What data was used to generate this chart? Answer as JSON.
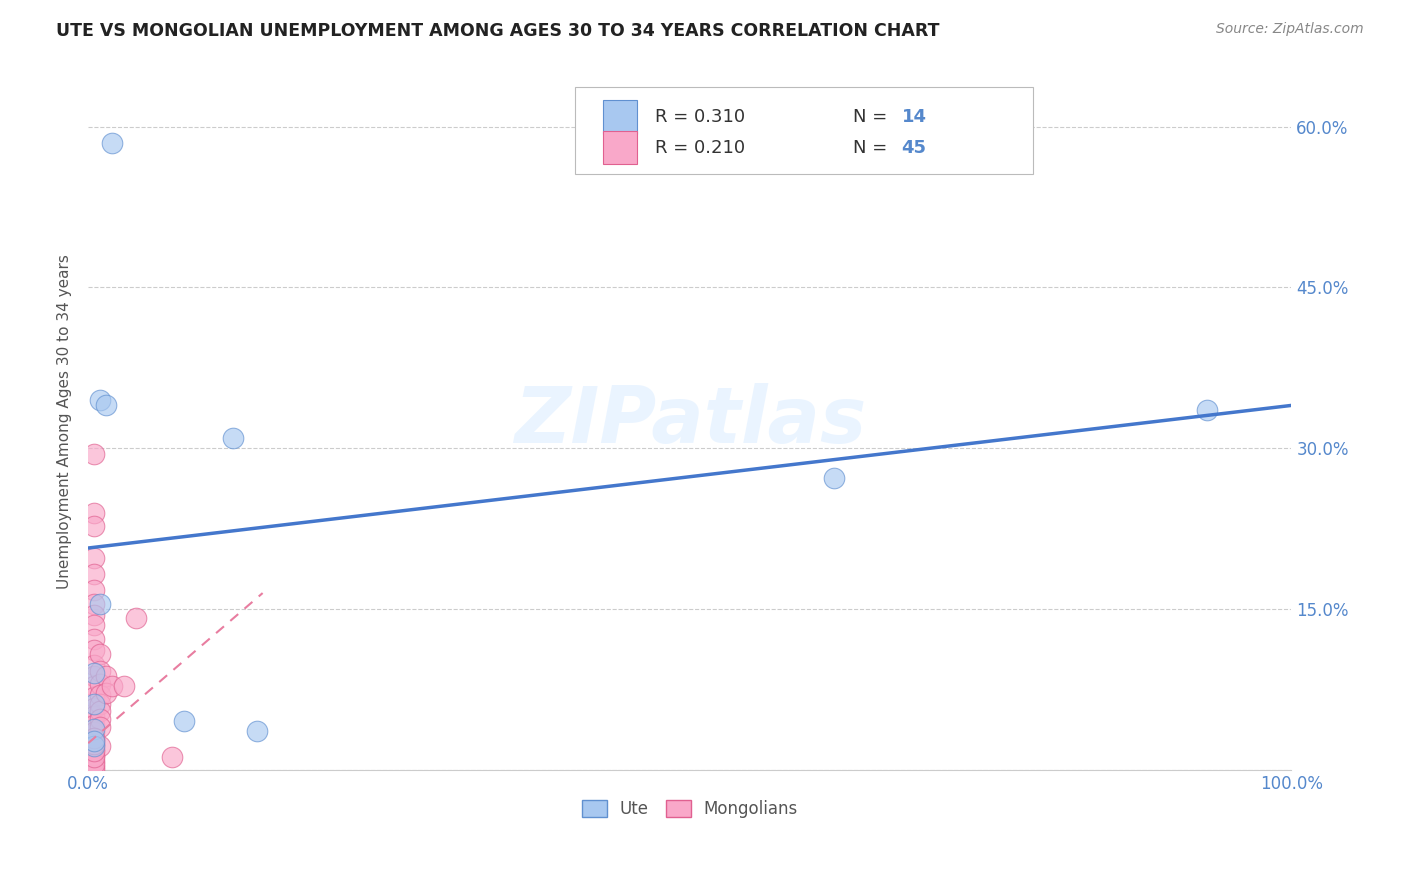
{
  "title": "UTE VS MONGOLIAN UNEMPLOYMENT AMONG AGES 30 TO 34 YEARS CORRELATION CHART",
  "source": "Source: ZipAtlas.com",
  "ylabel": "Unemployment Among Ages 30 to 34 years",
  "xlim": [
    0,
    1.0
  ],
  "ylim": [
    0,
    0.65
  ],
  "x_ticks": [
    0.0,
    0.1,
    0.2,
    0.3,
    0.4,
    0.5,
    0.6,
    0.7,
    0.8,
    0.9,
    1.0
  ],
  "x_tick_labels": [
    "0.0%",
    "",
    "",
    "",
    "",
    "",
    "",
    "",
    "",
    "",
    "100.0%"
  ],
  "y_ticks": [
    0.0,
    0.15,
    0.3,
    0.45,
    0.6
  ],
  "y_tick_labels_right": [
    "",
    "15.0%",
    "30.0%",
    "45.0%",
    "60.0%"
  ],
  "legend_ute_R": "0.310",
  "legend_ute_N": "14",
  "legend_mong_R": "0.210",
  "legend_mong_N": "45",
  "watermark": "ZIPatlas",
  "ute_color": "#A8C8F0",
  "mong_color": "#F9A8C9",
  "ute_edge_color": "#6090D0",
  "mong_edge_color": "#E06090",
  "ute_line_color": "#4477CC",
  "mong_line_color": "#E87DA0",
  "tick_color": "#5588CC",
  "grid_color": "#CCCCCC",
  "ute_scatter": [
    [
      0.02,
      0.585
    ],
    [
      0.01,
      0.345
    ],
    [
      0.015,
      0.34
    ],
    [
      0.12,
      0.31
    ],
    [
      0.01,
      0.155
    ],
    [
      0.005,
      0.09
    ],
    [
      0.005,
      0.062
    ],
    [
      0.08,
      0.046
    ],
    [
      0.005,
      0.038
    ],
    [
      0.14,
      0.036
    ],
    [
      0.62,
      0.272
    ],
    [
      0.93,
      0.336
    ],
    [
      0.005,
      0.022
    ],
    [
      0.005,
      0.027
    ]
  ],
  "mong_scatter": [
    [
      0.005,
      0.295
    ],
    [
      0.005,
      0.24
    ],
    [
      0.005,
      0.228
    ],
    [
      0.005,
      0.198
    ],
    [
      0.005,
      0.183
    ],
    [
      0.005,
      0.168
    ],
    [
      0.005,
      0.155
    ],
    [
      0.005,
      0.145
    ],
    [
      0.005,
      0.135
    ],
    [
      0.005,
      0.122
    ],
    [
      0.005,
      0.112
    ],
    [
      0.005,
      0.098
    ],
    [
      0.005,
      0.088
    ],
    [
      0.005,
      0.078
    ],
    [
      0.005,
      0.068
    ],
    [
      0.005,
      0.058
    ],
    [
      0.005,
      0.05
    ],
    [
      0.005,
      0.042
    ],
    [
      0.005,
      0.035
    ],
    [
      0.005,
      0.028
    ],
    [
      0.005,
      0.02
    ],
    [
      0.005,
      0.014
    ],
    [
      0.005,
      0.008
    ],
    [
      0.005,
      0.003
    ],
    [
      0.005,
      0.0
    ],
    [
      0.01,
      0.108
    ],
    [
      0.01,
      0.092
    ],
    [
      0.01,
      0.08
    ],
    [
      0.01,
      0.07
    ],
    [
      0.01,
      0.062
    ],
    [
      0.01,
      0.055
    ],
    [
      0.01,
      0.048
    ],
    [
      0.01,
      0.04
    ],
    [
      0.01,
      0.022
    ],
    [
      0.015,
      0.088
    ],
    [
      0.015,
      0.072
    ],
    [
      0.02,
      0.078
    ],
    [
      0.03,
      0.078
    ],
    [
      0.04,
      0.142
    ],
    [
      0.07,
      0.012
    ],
    [
      0.005,
      0.006
    ],
    [
      0.005,
      0.012
    ],
    [
      0.005,
      0.018
    ],
    [
      0.005,
      0.024
    ],
    [
      0.005,
      0.03
    ]
  ],
  "ute_trendline": [
    [
      0.0,
      0.207
    ],
    [
      1.0,
      0.34
    ]
  ],
  "mong_trendline": [
    [
      0.0,
      0.025
    ],
    [
      0.145,
      0.165
    ]
  ]
}
